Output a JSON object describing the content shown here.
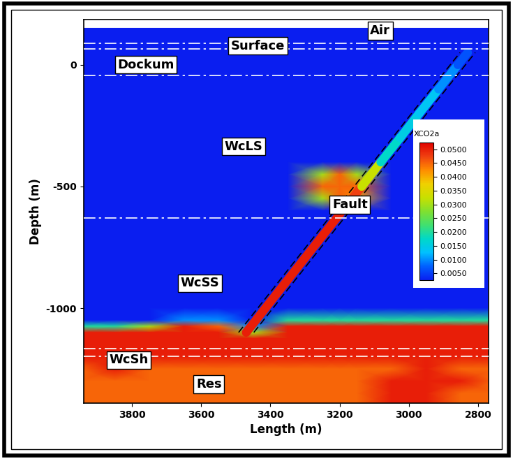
{
  "chart_data": {
    "type": "contour",
    "x_label": "Length (m)",
    "y_label": "Depth (m)",
    "xlim": [
      3940,
      2770
    ],
    "ylim": [
      -1390,
      185
    ],
    "xticks": [
      3800,
      3600,
      3400,
      3200,
      3000,
      2800
    ],
    "yticks": [
      -1000,
      -500,
      0
    ],
    "annotations": [
      "Air",
      "Surface",
      "Dockum",
      "WcLS",
      "Fault",
      "WcSS",
      "WcSh",
      "Res"
    ],
    "layer_boundaries": [
      89,
      66,
      -43,
      -629,
      -1167,
      -1198
    ],
    "colorbar": {
      "title": "XCO2a",
      "range": [
        0.0025,
        0.0525
      ],
      "ticks": [
        {
          "value": 0.005,
          "label": "0.0050"
        },
        {
          "value": 0.01,
          "label": "0.0100"
        },
        {
          "value": 0.015,
          "label": "0.0150"
        },
        {
          "value": 0.02,
          "label": "0.0200"
        },
        {
          "value": 0.025,
          "label": "0.0250"
        },
        {
          "value": 0.03,
          "label": "0.0300"
        },
        {
          "value": 0.035,
          "label": "0.0350"
        },
        {
          "value": 0.04,
          "label": "0.0400"
        },
        {
          "value": 0.045,
          "label": "0.0450"
        },
        {
          "value": 0.05,
          "label": "0.0500"
        }
      ]
    },
    "field": {
      "x": [
        3950,
        3850,
        3750,
        3650,
        3550,
        3450,
        3350,
        3250,
        3200,
        3150,
        3050,
        2950,
        2850,
        2750
      ],
      "y": [
        150,
        -400,
        -450,
        -500,
        -550,
        -600,
        -1000,
        -1050,
        -1075,
        -1100,
        -1125,
        -1150,
        -1200,
        -1250,
        -1300,
        -1350,
        -1400
      ],
      "values": [
        [
          0,
          0,
          0,
          0,
          0,
          0,
          0,
          0,
          0,
          0,
          0,
          0,
          0,
          0
        ],
        [
          0,
          0,
          0,
          0,
          0,
          0,
          0,
          0,
          0,
          0,
          0,
          0,
          0,
          0
        ],
        [
          0,
          0,
          0,
          0,
          0,
          0,
          0,
          0.03,
          0.045,
          0.03,
          0,
          0,
          0,
          0
        ],
        [
          0,
          0,
          0,
          0,
          0,
          0,
          0,
          0.045,
          0.045,
          0.045,
          0,
          0,
          0,
          0
        ],
        [
          0,
          0,
          0,
          0,
          0,
          0,
          0,
          0.03,
          0.045,
          0.04,
          0,
          0,
          0,
          0
        ],
        [
          0,
          0,
          0,
          0,
          0,
          0,
          0,
          0,
          0,
          0,
          0,
          0,
          0,
          0
        ],
        [
          0,
          0,
          0,
          0,
          0,
          0,
          0,
          0,
          0,
          0,
          0,
          0,
          0,
          0
        ],
        [
          0,
          0,
          0,
          0.01,
          0.01,
          0,
          0.02,
          0.02,
          0.02,
          0.02,
          0.02,
          0.02,
          0.02,
          0.02
        ],
        [
          0.02,
          0.02,
          0.03,
          0.05,
          0.045,
          0.01,
          0.05,
          0.05,
          0.05,
          0.05,
          0.05,
          0.05,
          0.05,
          0.05
        ],
        [
          0.05,
          0.05,
          0.05,
          0.05,
          0.05,
          0.03,
          0.05,
          0.05,
          0.05,
          0.05,
          0.05,
          0.05,
          0.05,
          0.05
        ],
        [
          0.05,
          0.05,
          0.05,
          0.05,
          0.05,
          0.05,
          0.05,
          0.05,
          0.05,
          0.05,
          0.05,
          0.05,
          0.05,
          0.05
        ],
        [
          0.05,
          0.05,
          0.05,
          0.05,
          0.05,
          0.05,
          0.05,
          0.05,
          0.05,
          0.05,
          0.05,
          0.05,
          0.05,
          0.05
        ],
        [
          0.05,
          0.05,
          0.05,
          0.05,
          0.05,
          0.05,
          0.05,
          0.05,
          0.05,
          0.05,
          0.05,
          0.05,
          0.05,
          0.05
        ],
        [
          0.045,
          0.05,
          0.045,
          0.045,
          0.045,
          0.045,
          0.045,
          0.045,
          0.045,
          0.045,
          0.045,
          0.05,
          0.045,
          0.045
        ],
        [
          0.045,
          0.045,
          0.045,
          0.045,
          0.045,
          0.045,
          0.045,
          0.045,
          0.045,
          0.045,
          0.05,
          0.05,
          0.05,
          0.045
        ],
        [
          0.045,
          0.045,
          0.045,
          0.045,
          0.045,
          0.045,
          0.045,
          0.045,
          0.045,
          0.045,
          0.05,
          0.05,
          0.045,
          0.045
        ],
        [
          0.045,
          0.045,
          0.045,
          0.045,
          0.045,
          0.045,
          0.045,
          0.045,
          0.045,
          0.045,
          0.05,
          0.05,
          0.045,
          0.045
        ]
      ]
    },
    "fault": {
      "x": [
        3470,
        3359,
        3248,
        3192,
        3136,
        3081,
        3025,
        2970,
        2914,
        2858,
        2830
      ],
      "y": [
        -1100,
        -900,
        -700,
        -600,
        -500,
        -400,
        -300,
        -200,
        -100,
        0,
        50
      ],
      "values": [
        0.05,
        0.05,
        0.05,
        0.05,
        0.045,
        0.02,
        0.015,
        0.015,
        0.012,
        0.008,
        0.005
      ]
    }
  }
}
